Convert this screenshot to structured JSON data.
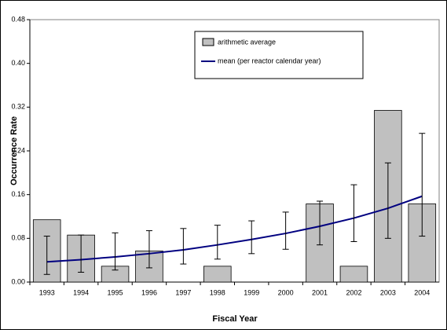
{
  "chart_data": {
    "type": "bar-line",
    "x_label": "Fiscal Year",
    "y_label": "Occurrence Rate",
    "categories": [
      "1993",
      "1994",
      "1995",
      "1996",
      "1997",
      "1998",
      "1999",
      "2000",
      "2001",
      "2002",
      "2003",
      "2004"
    ],
    "series": [
      {
        "name": "arithmetic average",
        "color": "#c0c0c0",
        "values": [
          0.114,
          0.086,
          0.029,
          0.057,
          0,
          0.029,
          0,
          0,
          0.143,
          0.029,
          0.314,
          0.143
        ]
      },
      {
        "name": "mean (per reactor calendar year)",
        "color": "#000080",
        "values": [
          0.037,
          0.041,
          0.046,
          0.052,
          0.059,
          0.068,
          0.078,
          0.089,
          0.102,
          0.117,
          0.135,
          0.157
        ],
        "lower": [
          0.014,
          0.018,
          0.022,
          0.026,
          0.033,
          0.042,
          0.052,
          0.06,
          0.068,
          0.074,
          0.08,
          0.084
        ],
        "upper": [
          0.084,
          0.086,
          0.09,
          0.094,
          0.098,
          0.104,
          0.112,
          0.128,
          0.148,
          0.178,
          0.218,
          0.272
        ]
      }
    ],
    "ylim": [
      0,
      0.48
    ],
    "yticks": [
      {
        "value": 0,
        "label": "0.00"
      },
      {
        "value": 0.08,
        "label": "0.08"
      },
      {
        "value": 0.16,
        "label": "0.16"
      },
      {
        "value": 0.24,
        "label": "0.24"
      },
      {
        "value": 0.32,
        "label": "0.32"
      },
      {
        "value": 0.4,
        "label": "0.40"
      },
      {
        "value": 0.48,
        "label": "0.48"
      }
    ]
  }
}
